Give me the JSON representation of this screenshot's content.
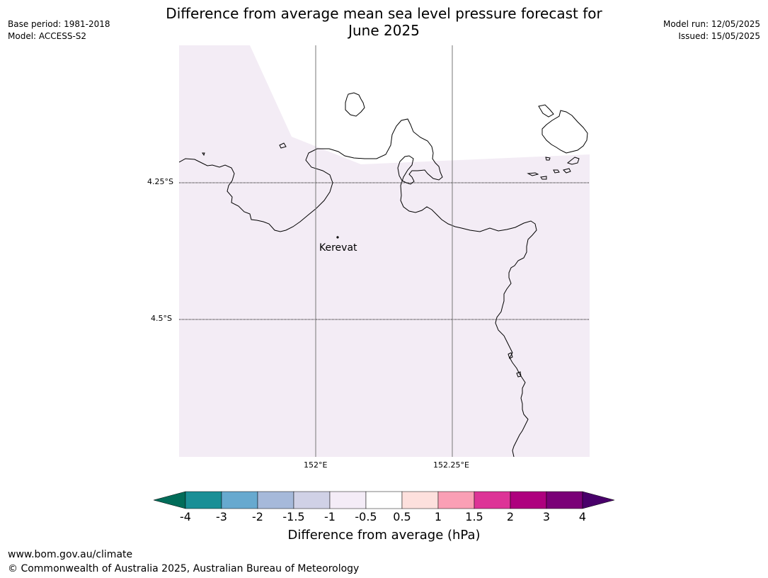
{
  "title": {
    "line1": "Difference from average mean sea level pressure forecast for",
    "line2": "June 2025"
  },
  "meta": {
    "base_period": "Base period: 1981-2018",
    "model": "Model: ACCESS-S2",
    "model_run": "Model run: 12/05/2025",
    "issued": "Issued: 15/05/2025"
  },
  "map": {
    "lat_labels": [
      "4.25°S",
      "4.5°S"
    ],
    "lon_labels": [
      "152°E",
      "152.25°E"
    ],
    "place": {
      "name": "Kerevat"
    },
    "fill_color": "#f3ecf5",
    "land_bg": "#ffffff",
    "coast_color": "#000000"
  },
  "colorbar": {
    "ticks": [
      "-4",
      "-3",
      "-2",
      "-1.5",
      "-1",
      "-0.5",
      "0.5",
      "1",
      "1.5",
      "2",
      "3",
      "4"
    ],
    "colors": [
      "#1a8f96",
      "#67a9cf",
      "#a6b9da",
      "#d0d1e6",
      "#f4ecf7",
      "#ffffff",
      "#fde0dd",
      "#fa9fb5",
      "#dd3497",
      "#ae017e",
      "#7a0177"
    ],
    "under_color": "#016c59",
    "over_color": "#49006a",
    "label": "Difference from average (hPa)"
  },
  "footer": {
    "url": "www.bom.gov.au/climate",
    "copyright": "© Commonwealth of Australia 2025, Australian Bureau of Meteorology"
  }
}
